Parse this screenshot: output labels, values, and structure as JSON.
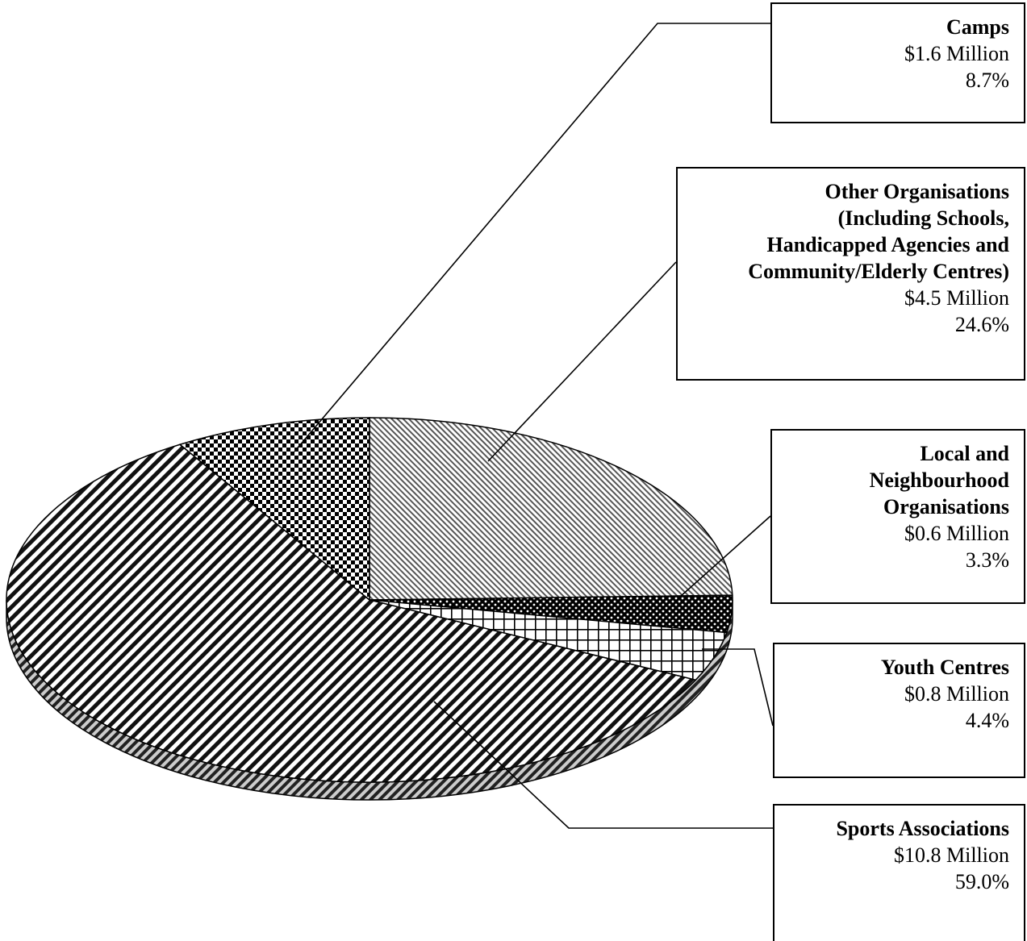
{
  "chart_data": {
    "type": "pie",
    "title": "",
    "unit": "$ Million",
    "slices": [
      {
        "name": "Other Organisations (Including Schools, Handicapped Agencies and Community/Elderly Centres)",
        "value": 4.5,
        "percent": 24.6,
        "pattern": "fine-diagonal"
      },
      {
        "name": "Local and Neighbourhood Organisations",
        "value": 0.6,
        "percent": 3.3,
        "pattern": "dots-dark"
      },
      {
        "name": "Youth Centres",
        "value": 0.8,
        "percent": 4.4,
        "pattern": "grid"
      },
      {
        "name": "Sports Associations",
        "value": 10.8,
        "percent": 59.0,
        "pattern": "bold-diagonal"
      },
      {
        "name": "Camps",
        "value": 1.6,
        "percent": 8.7,
        "pattern": "checker"
      }
    ],
    "style": "3d-exploded-pie",
    "colors": {
      "ink": "#000000",
      "background": "#ffffff"
    }
  },
  "labels": {
    "camps": {
      "name": "Camps",
      "amount": "$1.6 Million",
      "percent": "8.7%"
    },
    "other": {
      "name_lines": [
        "Other Organisations",
        "(Including Schools,",
        "Handicapped Agencies and",
        "Community/Elderly Centres)"
      ],
      "amount": "$4.5 Million",
      "percent": "24.6%"
    },
    "local": {
      "name_lines": [
        "Local and",
        "Neighbourhood",
        "Organisations"
      ],
      "amount": "$0.6  Million",
      "percent": "3.3%"
    },
    "youth": {
      "name": "Youth Centres",
      "amount": "$0.8 Million",
      "percent": "4.4%"
    },
    "sports": {
      "name": "Sports  Associations",
      "amount": "$10.8  Million",
      "percent": "59.0%"
    }
  }
}
